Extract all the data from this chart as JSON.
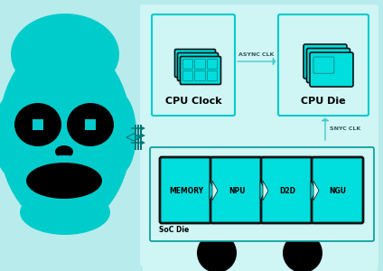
{
  "bg_color": "#b8ecec",
  "diagram_bg": "#cff5f5",
  "box_fill": "#cff5f5",
  "box_border_cpu": "#00cccc",
  "box_border_soc": "#009999",
  "chip_fill": "#00dddd",
  "chip_dark": "#111111",
  "chip_inner": "#009999",
  "arrow_color": "#44cccc",
  "text_color": "#000000",
  "blob_color": "#00cccc",
  "cpu_clock_label": "CPU Clock",
  "cpu_die_label": "CPU Die",
  "soc_label": "SoC Die",
  "async_clk_text": "ASYNC CLK",
  "snyc_clk_text": "SNYC CLK",
  "soc_blocks": [
    "MEMORY",
    "NPU",
    "D2D",
    "NGU"
  ],
  "fig_width": 4.24,
  "fig_height": 3.0
}
